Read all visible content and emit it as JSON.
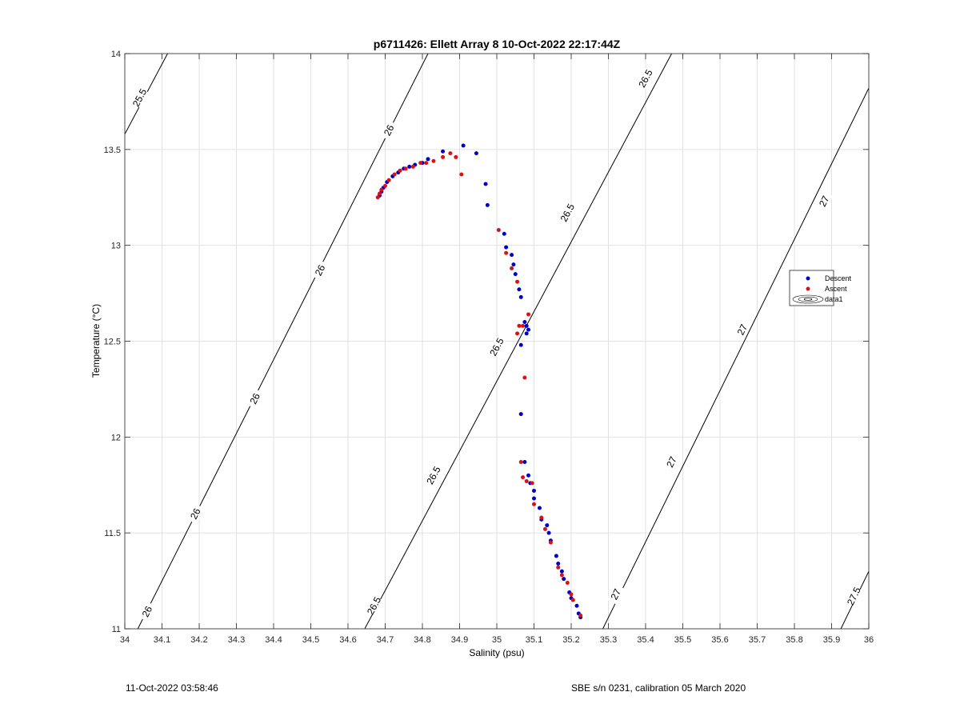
{
  "chart_data": {
    "type": "scatter",
    "title": "p6711426: Ellett Array 8 10-Oct-2022 22:17:44Z",
    "xlabel": "Salinity (psu)",
    "ylabel": "Temperature (°C)",
    "xlim": [
      34,
      36
    ],
    "ylim": [
      11,
      14
    ],
    "xticks": [
      34,
      34.1,
      34.2,
      34.3,
      34.4,
      34.5,
      34.6,
      34.7,
      34.8,
      34.9,
      35,
      35.1,
      35.2,
      35.3,
      35.4,
      35.5,
      35.6,
      35.7,
      35.8,
      35.9,
      36
    ],
    "xtick_labels": [
      "34",
      "34.1",
      "34.2",
      "34.3",
      "34.4",
      "34.5",
      "34.6",
      "34.7",
      "34.8",
      "34.9",
      "35",
      "35.1",
      "35.2",
      "35.3",
      "35.4",
      "35.5",
      "35.6",
      "35.7",
      "35.8",
      "35.9",
      "36"
    ],
    "yticks": [
      11,
      11.5,
      12,
      12.5,
      13,
      13.5,
      14
    ],
    "ytick_labels": [
      "11",
      "11.5",
      "12",
      "12.5",
      "13",
      "13.5",
      "14"
    ],
    "grid": true,
    "legend_position": "right",
    "legend": [
      "Descent",
      "Ascent",
      "data1"
    ],
    "series": [
      {
        "name": "Descent",
        "color": "#0000cc",
        "points": [
          [
            34.685,
            13.26
          ],
          [
            34.69,
            13.28
          ],
          [
            34.695,
            13.3
          ],
          [
            34.705,
            13.33
          ],
          [
            34.72,
            13.36
          ],
          [
            34.735,
            13.38
          ],
          [
            34.75,
            13.4
          ],
          [
            34.765,
            13.41
          ],
          [
            34.78,
            13.42
          ],
          [
            34.8,
            13.43
          ],
          [
            34.815,
            13.45
          ],
          [
            34.855,
            13.49
          ],
          [
            34.91,
            13.52
          ],
          [
            34.945,
            13.48
          ],
          [
            34.97,
            13.32
          ],
          [
            34.975,
            13.21
          ],
          [
            35.02,
            13.06
          ],
          [
            35.025,
            12.99
          ],
          [
            35.04,
            12.95
          ],
          [
            35.045,
            12.9
          ],
          [
            35.05,
            12.85
          ],
          [
            35.06,
            12.77
          ],
          [
            35.065,
            12.73
          ],
          [
            35.075,
            12.6
          ],
          [
            35.08,
            12.58
          ],
          [
            35.085,
            12.56
          ],
          [
            35.08,
            12.54
          ],
          [
            35.065,
            12.48
          ],
          [
            35.065,
            12.12
          ],
          [
            35.075,
            11.87
          ],
          [
            35.085,
            11.8
          ],
          [
            35.09,
            11.76
          ],
          [
            35.1,
            11.72
          ],
          [
            35.1,
            11.68
          ],
          [
            35.115,
            11.63
          ],
          [
            35.12,
            11.57
          ],
          [
            35.135,
            11.54
          ],
          [
            35.14,
            11.5
          ],
          [
            35.145,
            11.46
          ],
          [
            35.16,
            11.38
          ],
          [
            35.165,
            11.34
          ],
          [
            35.175,
            11.3
          ],
          [
            35.18,
            11.26
          ],
          [
            35.195,
            11.19
          ],
          [
            35.2,
            11.16
          ],
          [
            35.215,
            11.12
          ],
          [
            35.22,
            11.08
          ],
          [
            35.225,
            11.06
          ]
        ]
      },
      {
        "name": "Ascent",
        "color": "#dd1111",
        "points": [
          [
            34.68,
            13.25
          ],
          [
            34.685,
            13.27
          ],
          [
            34.69,
            13.29
          ],
          [
            34.7,
            13.31
          ],
          [
            34.71,
            13.34
          ],
          [
            34.725,
            13.37
          ],
          [
            34.74,
            13.39
          ],
          [
            34.755,
            13.4
          ],
          [
            34.775,
            13.41
          ],
          [
            34.795,
            13.43
          ],
          [
            34.81,
            13.43
          ],
          [
            34.83,
            13.44
          ],
          [
            34.855,
            13.46
          ],
          [
            34.875,
            13.48
          ],
          [
            34.89,
            13.46
          ],
          [
            34.905,
            13.37
          ],
          [
            35.005,
            13.08
          ],
          [
            35.025,
            12.96
          ],
          [
            35.04,
            12.88
          ],
          [
            35.055,
            12.81
          ],
          [
            35.085,
            12.64
          ],
          [
            35.07,
            12.58
          ],
          [
            35.06,
            12.58
          ],
          [
            35.055,
            12.54
          ],
          [
            35.075,
            12.31
          ],
          [
            35.065,
            11.87
          ],
          [
            35.07,
            11.79
          ],
          [
            35.08,
            11.77
          ],
          [
            35.095,
            11.76
          ],
          [
            35.1,
            11.65
          ],
          [
            35.12,
            11.58
          ],
          [
            35.13,
            11.52
          ],
          [
            35.145,
            11.45
          ],
          [
            35.165,
            11.32
          ],
          [
            35.175,
            11.28
          ],
          [
            35.19,
            11.24
          ],
          [
            35.2,
            11.18
          ],
          [
            35.205,
            11.15
          ],
          [
            35.225,
            11.07
          ]
        ]
      },
      {
        "name": "data1",
        "type": "contour",
        "color": "#000000",
        "levels": [
          25.5,
          26,
          26.5,
          27,
          27.5
        ],
        "lines": [
          {
            "level": 25.5,
            "from": [
              34.0,
              13.58
            ],
            "to": [
              34.115,
              14.0
            ],
            "labels": [
              [
                34.04,
                13.77
              ]
            ]
          },
          {
            "level": 26,
            "from": [
              34.035,
              11.0
            ],
            "to": [
              34.815,
              14.0
            ],
            "labels": [
              [
                34.06,
                11.09
              ],
              [
                34.19,
                11.6
              ],
              [
                34.35,
                12.2
              ],
              [
                34.525,
                12.87
              ],
              [
                34.71,
                13.6
              ]
            ]
          },
          {
            "level": 26.5,
            "from": [
              34.645,
              11.0
            ],
            "to": [
              35.47,
              14.0
            ],
            "labels": [
              [
                34.67,
                11.12
              ],
              [
                34.83,
                11.8
              ],
              [
                35.0,
                12.47
              ],
              [
                35.19,
                13.17
              ],
              [
                35.4,
                13.87
              ]
            ]
          },
          {
            "level": 27,
            "from": [
              35.285,
              11.0
            ],
            "to": [
              36.0,
              13.82
            ],
            "labels": [
              [
                35.32,
                11.18
              ],
              [
                35.47,
                11.87
              ],
              [
                35.66,
                12.56
              ],
              [
                35.88,
                13.23
              ]
            ]
          },
          {
            "level": 27.5,
            "from": [
              35.925,
              11.0
            ],
            "to": [
              36.0,
              11.3
            ],
            "labels": [
              [
                35.96,
                11.17
              ]
            ]
          }
        ]
      }
    ]
  },
  "footer": {
    "left": "11-Oct-2022 03:58:46",
    "right": "SBE s/n 0231, calibration 05 March 2020"
  }
}
